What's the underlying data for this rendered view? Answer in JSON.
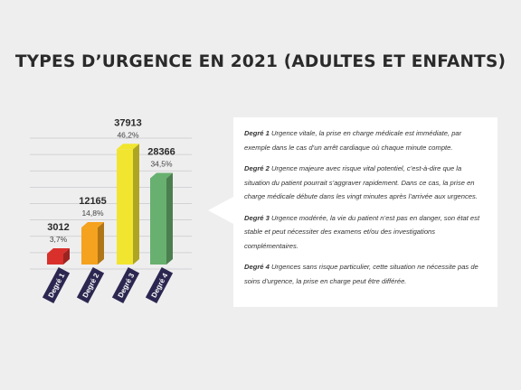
{
  "title": "TYPES D’URGENCE EN 2021 (ADULTES ET ENFANTS)",
  "chart_data": {
    "type": "bar",
    "title": "TYPES D’URGENCE EN 2021 (ADULTES ET ENFANTS)",
    "categories": [
      "Degré 1",
      "Degré 2",
      "Degré 3",
      "Degré 4"
    ],
    "values": [
      3012,
      12165,
      37913,
      28366
    ],
    "value_labels": [
      "3012",
      "12165",
      "37913",
      "28366"
    ],
    "percent_labels": [
      "3,7%",
      "14,8%",
      "46,2%",
      "34,5%"
    ],
    "colors": [
      "#d9302c",
      "#f5a21f",
      "#f1e530",
      "#68b06f"
    ],
    "ylim": [
      0,
      38000
    ],
    "grid": true
  },
  "definitions": [
    {
      "label": "Degré 1",
      "text": "Urgence vitale, la prise en charge médicale est immédiate, par exemple dans le cas d’un arrêt cardiaque où chaque minute compte."
    },
    {
      "label": "Degré 2",
      "text": "Urgence majeure avec risque vital potentiel, c’est-à-dire que la situation du patient pourrait s’aggraver rapidement. Dans ce cas, la prise en charge médicale débute dans les vingt minutes après l’arrivée aux urgences."
    },
    {
      "label": "Degré 3",
      "text": "Urgence modérée, la vie du patient n’est pas en danger, son état est stable et peut nécessiter des examens et/ou des investigations complémentaires."
    },
    {
      "label": "Degré 4",
      "text": "Urgences sans risque particulier, cette situation ne nécessite pas de soins d’urgence, la prise en charge peut être différée."
    }
  ]
}
